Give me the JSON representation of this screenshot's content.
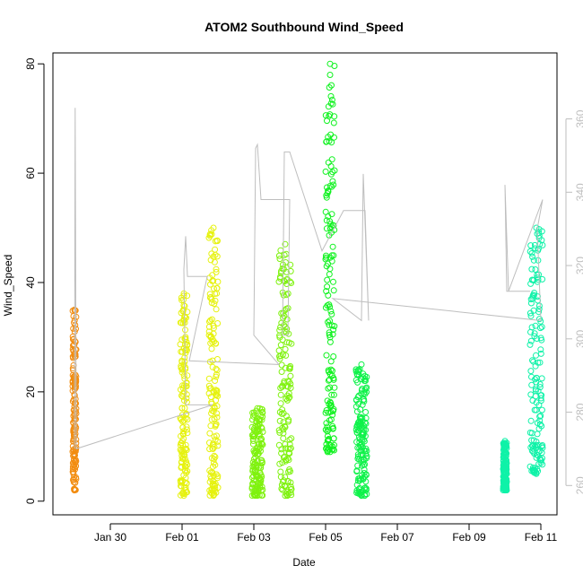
{
  "chart_data": {
    "type": "scatter",
    "title": "ATOM2 Southbound Wind_Speed",
    "xlabel": "Date",
    "ylabel": "Wind_Speed",
    "x_ticks": [
      "Jan 30",
      "Feb 01",
      "Feb 03",
      "Feb 05",
      "Feb 07",
      "Feb 09",
      "Feb 11"
    ],
    "x_tick_days": [
      30,
      32,
      34,
      36,
      38,
      40,
      42
    ],
    "xlim_days": [
      28.4,
      42.45
    ],
    "ylim": [
      -2.5,
      82
    ],
    "y_ticks": [
      0,
      20,
      40,
      60,
      80
    ],
    "y2lim": [
      252,
      378
    ],
    "y2_ticks": [
      260,
      280,
      300,
      320,
      340,
      360
    ],
    "series": [
      {
        "color": "#f28c0f",
        "segments": [
          {
            "start": 28.95,
            "end": 29.05,
            "min": 2,
            "max": 35
          }
        ]
      },
      {
        "color": "#e6f20f",
        "segments": [
          {
            "start": 31.95,
            "end": 32.15,
            "min": 1,
            "max": 38
          },
          {
            "start": 32.75,
            "end": 33.0,
            "min": 1,
            "max": 50
          }
        ]
      },
      {
        "color": "#7ff20f",
        "segments": [
          {
            "start": 33.95,
            "end": 34.25,
            "min": 1,
            "max": 17
          },
          {
            "start": 34.7,
            "end": 35.05,
            "min": 1,
            "max": 47
          }
        ]
      },
      {
        "color": "#0ff21f",
        "segments": [
          {
            "start": 36.0,
            "end": 36.25,
            "min": 9,
            "max": 80
          }
        ]
      },
      {
        "color": "#0ff24a",
        "segments": [
          {
            "start": 36.85,
            "end": 37.15,
            "min": 1,
            "max": 25
          }
        ]
      },
      {
        "color": "#0ff2a8",
        "segments": [
          {
            "start": 40.95,
            "end": 41.05,
            "min": 2,
            "max": 11
          },
          {
            "start": 41.7,
            "end": 42.05,
            "min": 5,
            "max": 50
          }
        ]
      }
    ],
    "direction_line": {
      "color": "#bebebe",
      "points": [
        [
          29.0,
          270
        ],
        [
          29.02,
          363
        ],
        [
          29.05,
          270
        ],
        [
          32.85,
          282
        ],
        [
          32.1,
          282
        ],
        [
          32.05,
          319
        ],
        [
          32.1,
          328
        ],
        [
          32.15,
          317
        ],
        [
          32.7,
          317
        ],
        [
          32.2,
          294
        ],
        [
          34.7,
          293
        ],
        [
          34.0,
          301
        ],
        [
          34.05,
          352
        ],
        [
          34.1,
          353
        ],
        [
          34.2,
          338
        ],
        [
          35.0,
          338
        ],
        [
          34.95,
          301
        ],
        [
          34.8,
          301
        ],
        [
          34.85,
          351
        ],
        [
          35.0,
          351
        ],
        [
          35.9,
          324
        ],
        [
          36.5,
          335
        ],
        [
          37.1,
          335
        ],
        [
          37.2,
          305
        ],
        [
          37.05,
          345
        ],
        [
          37.0,
          305
        ],
        [
          36.2,
          311
        ],
        [
          42.0,
          305
        ],
        [
          41.9,
          330
        ],
        [
          42.05,
          338
        ],
        [
          41.1,
          313
        ],
        [
          41.0,
          342
        ],
        [
          41.05,
          313
        ],
        [
          41.7,
          313
        ]
      ]
    },
    "grid": false,
    "legend": "none"
  }
}
